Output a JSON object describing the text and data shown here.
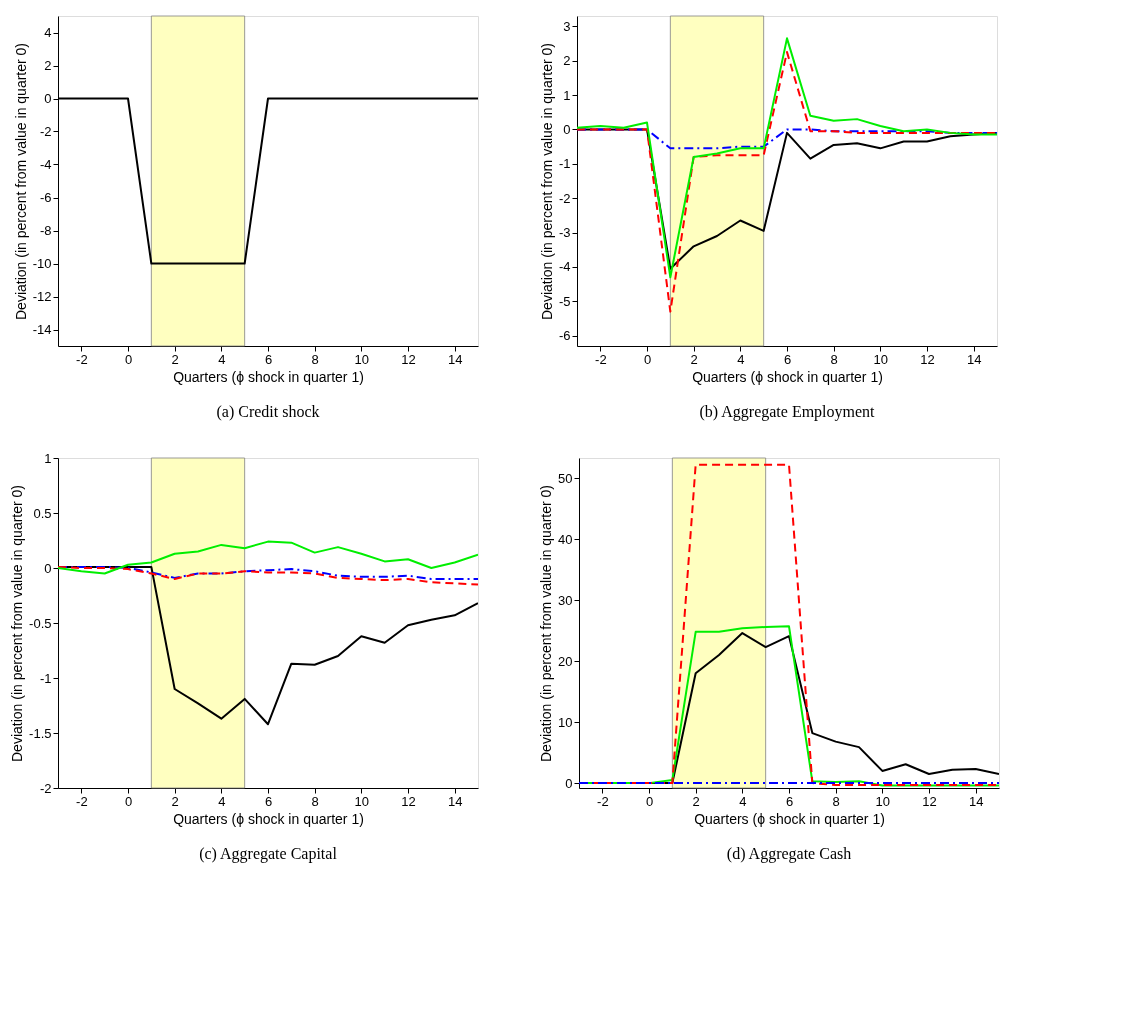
{
  "chart_data": [
    {
      "type": "line",
      "title": "(a)  Credit shock",
      "xlabel": "Quarters  (ϕ shock in quarter 1)",
      "ylabel": "Deviation  (in percent from value in quarter 0)",
      "x": [
        -3,
        -2,
        -1,
        0,
        1,
        2,
        3,
        4,
        5,
        6,
        7,
        8,
        9,
        10,
        11,
        12,
        13,
        14,
        15
      ],
      "xlim": [
        -3,
        15
      ],
      "xticks": [
        -2,
        0,
        2,
        4,
        6,
        8,
        10,
        12,
        14
      ],
      "ylim": [
        -15,
        5
      ],
      "yticks": [
        -14,
        -12,
        -10,
        -8,
        -6,
        -4,
        -2,
        0,
        2,
        4
      ],
      "grid": false,
      "bands": [
        {
          "axis": "x",
          "from": 1,
          "to": 5,
          "color": "#ffffc0"
        }
      ],
      "series": [
        {
          "color": "#000000",
          "line_style": "solid",
          "values": [
            0,
            0,
            0,
            0,
            -10,
            -10,
            -10,
            -10,
            -10,
            0,
            0,
            0,
            0,
            0,
            0,
            0,
            0,
            0,
            0
          ]
        }
      ]
    },
    {
      "type": "line",
      "title": "(b)  Aggregate Employment",
      "xlabel": "Quarters  (ϕ shock in quarter 1)",
      "ylabel": "Deviation  (in percent from value in quarter 0)",
      "x": [
        -3,
        -2,
        -1,
        0,
        1,
        2,
        3,
        4,
        5,
        6,
        7,
        8,
        9,
        10,
        11,
        12,
        13,
        14,
        15
      ],
      "xlim": [
        -3,
        15
      ],
      "xticks": [
        -2,
        0,
        2,
        4,
        6,
        8,
        10,
        12,
        14
      ],
      "ylim": [
        -6.3,
        3.3
      ],
      "yticks": [
        -6,
        -5,
        -4,
        -3,
        -2,
        -1,
        0,
        1,
        2,
        3
      ],
      "grid": false,
      "bands": [
        {
          "axis": "x",
          "from": 1,
          "to": 5,
          "color": "#ffffc0"
        }
      ],
      "series": [
        {
          "color": "#000000",
          "line_style": "solid",
          "values": [
            0,
            0,
            0,
            0,
            -4.05,
            -3.4,
            -3.1,
            -2.65,
            -2.95,
            -0.1,
            -0.85,
            -0.45,
            -0.4,
            -0.55,
            -0.35,
            -0.35,
            -0.2,
            -0.15,
            -0.1
          ]
        },
        {
          "color": "#0000ff",
          "line_style": "dashdot",
          "values": [
            0,
            0,
            0,
            0,
            -0.55,
            -0.55,
            -0.55,
            -0.5,
            -0.5,
            0,
            0,
            -0.05,
            -0.05,
            -0.05,
            -0.05,
            -0.05,
            -0.1,
            -0.1,
            -0.1
          ]
        },
        {
          "color": "#ff0000",
          "line_style": "dashed",
          "values": [
            0,
            0,
            0,
            0,
            -5.3,
            -0.8,
            -0.75,
            -0.75,
            -0.75,
            2.25,
            -0.05,
            -0.05,
            -0.1,
            -0.1,
            -0.1,
            -0.1,
            -0.1,
            -0.1,
            -0.1
          ]
        },
        {
          "color": "#00ee00",
          "line_style": "solid",
          "values": [
            0.05,
            0.1,
            0.05,
            0.2,
            -4.3,
            -0.8,
            -0.7,
            -0.55,
            -0.55,
            2.65,
            0.4,
            0.25,
            0.3,
            0.1,
            -0.05,
            0,
            -0.1,
            -0.15,
            -0.15
          ]
        }
      ]
    },
    {
      "type": "line",
      "title": "(c)  Aggregate Capital",
      "xlabel": "Quarters  (ϕ shock in quarter 1)",
      "ylabel": "Deviation  (in percent from value in quarter 0)",
      "x": [
        -3,
        -2,
        -1,
        0,
        1,
        2,
        3,
        4,
        5,
        6,
        7,
        8,
        9,
        10,
        11,
        12,
        13,
        14,
        15
      ],
      "xlim": [
        -3,
        15
      ],
      "xticks": [
        -2,
        0,
        2,
        4,
        6,
        8,
        10,
        12,
        14
      ],
      "ylim": [
        -2,
        1
      ],
      "yticks": [
        -2,
        -1.5,
        -1,
        -0.5,
        0,
        0.5,
        1
      ],
      "grid": false,
      "bands": [
        {
          "axis": "x",
          "from": 1,
          "to": 5,
          "color": "#ffffc0"
        }
      ],
      "series": [
        {
          "color": "#000000",
          "line_style": "solid",
          "values": [
            0.01,
            0.01,
            0.01,
            0.01,
            0.01,
            -1.1,
            -1.23,
            -1.37,
            -1.19,
            -1.42,
            -0.87,
            -0.88,
            -0.8,
            -0.62,
            -0.68,
            -0.52,
            -0.47,
            -0.43,
            -0.32
          ]
        },
        {
          "color": "#0000ff",
          "line_style": "dashdot",
          "values": [
            0.01,
            0.01,
            0.01,
            0,
            -0.04,
            -0.09,
            -0.05,
            -0.05,
            -0.03,
            -0.02,
            -0.01,
            -0.03,
            -0.07,
            -0.08,
            -0.08,
            -0.07,
            -0.1,
            -0.1,
            -0.1
          ]
        },
        {
          "color": "#ff0000",
          "line_style": "dashed",
          "values": [
            0.01,
            0,
            0,
            -0.01,
            -0.05,
            -0.1,
            -0.05,
            -0.05,
            -0.03,
            -0.04,
            -0.04,
            -0.05,
            -0.09,
            -0.1,
            -0.11,
            -0.1,
            -0.13,
            -0.14,
            -0.15
          ]
        },
        {
          "color": "#00ee00",
          "line_style": "solid",
          "values": [
            0,
            -0.03,
            -0.05,
            0.03,
            0.05,
            0.13,
            0.15,
            0.21,
            0.18,
            0.24,
            0.23,
            0.14,
            0.19,
            0.13,
            0.06,
            0.08,
            0,
            0.05,
            0.12
          ]
        }
      ]
    },
    {
      "type": "line",
      "title": "(d)  Aggregate Cash",
      "xlabel": "Quarters  (ϕ shock in quarter 1)",
      "ylabel": "Deviation  (in percent from value in quarter 0)",
      "x": [
        -3,
        -2,
        -1,
        0,
        1,
        2,
        3,
        4,
        5,
        6,
        7,
        8,
        9,
        10,
        11,
        12,
        13,
        14,
        15
      ],
      "xlim": [
        -3,
        15
      ],
      "xticks": [
        -2,
        0,
        2,
        4,
        6,
        8,
        10,
        12,
        14
      ],
      "ylim": [
        -0.8,
        53.3
      ],
      "yticks": [
        0,
        10,
        20,
        30,
        40,
        50
      ],
      "grid": false,
      "bands": [
        {
          "axis": "x",
          "from": 1,
          "to": 5,
          "color": "#ffffc0"
        }
      ],
      "series": [
        {
          "color": "#000000",
          "line_style": "solid",
          "values": [
            0,
            0,
            0,
            0,
            0,
            18,
            21,
            24.6,
            22.3,
            24.1,
            8.2,
            6.8,
            5.9,
            2,
            3.1,
            1.5,
            2.2,
            2.3,
            1.5
          ]
        },
        {
          "color": "#00ee00",
          "line_style": "solid",
          "values": [
            0,
            0,
            0,
            0,
            0.5,
            24.8,
            24.8,
            25.4,
            25.6,
            25.7,
            0.3,
            0.2,
            0.3,
            -0.4,
            -0.4,
            -0.4,
            -0.4,
            -0.4,
            -0.4
          ]
        },
        {
          "color": "#ff0000",
          "line_style": "dashed",
          "values": [
            0,
            0,
            0,
            0,
            0,
            52.2,
            52.2,
            52.2,
            52.2,
            52.2,
            0,
            -0.3,
            -0.3,
            -0.3,
            -0.3,
            -0.3,
            -0.3,
            -0.3,
            -0.3
          ]
        },
        {
          "color": "#0000ff",
          "line_style": "dashdot",
          "values": [
            0,
            0,
            0,
            0,
            0,
            0,
            0,
            0,
            0,
            0,
            0,
            0,
            0,
            0,
            0,
            0,
            0,
            0,
            0
          ]
        }
      ]
    }
  ]
}
